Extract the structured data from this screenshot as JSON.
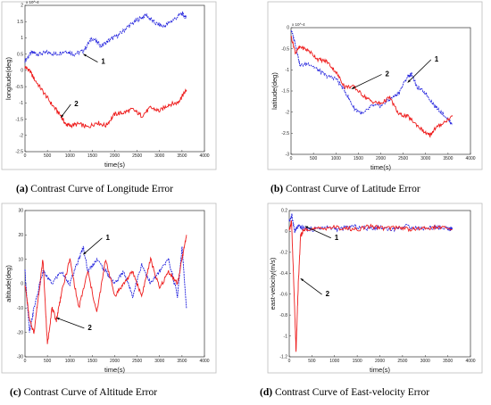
{
  "captions": [
    {
      "letter": "(a)",
      "text": " Contrast Curve of Longitude Error"
    },
    {
      "letter": "(b)",
      "text": " Contrast Curve of Latitude Error"
    },
    {
      "letter": "(c)",
      "text": " Contrast Curve of Altitude Error"
    },
    {
      "letter": "(d)",
      "text": " Contrast Curve of East-velocity Error"
    }
  ],
  "colors": {
    "series1": "#2020dd",
    "series2": "#ee1c1c"
  },
  "chart_data": [
    {
      "type": "line",
      "xlabel": "time(s)",
      "ylabel": "longitude(deg)",
      "y_multiplier": "x 10^-4",
      "xlim": [
        0,
        4000
      ],
      "ylim": [
        -2.5,
        2
      ],
      "xticks": [
        "0",
        "500",
        "1000",
        "1500",
        "2000",
        "2500",
        "3000",
        "3500",
        "4000"
      ],
      "yticks": [
        "-2.5",
        "-2",
        "-1.5",
        "-1",
        "-0.5",
        "0",
        "0.5",
        "1",
        "1.5",
        "2"
      ],
      "series": [
        {
          "label": "1",
          "x": [
            0,
            150,
            300,
            500,
            700,
            900,
            1100,
            1300,
            1500,
            1700,
            1900,
            2100,
            2300,
            2500,
            2700,
            2900,
            3100,
            3300,
            3500,
            3600
          ],
          "y": [
            0.3,
            0.55,
            0.5,
            0.55,
            0.5,
            0.6,
            0.5,
            0.6,
            1.0,
            0.75,
            0.95,
            1.1,
            1.35,
            1.55,
            1.7,
            1.45,
            1.35,
            1.55,
            1.75,
            1.6
          ]
        },
        {
          "label": "2",
          "x": [
            0,
            100,
            200,
            400,
            600,
            800,
            900,
            1000,
            1200,
            1400,
            1600,
            1800,
            2000,
            2200,
            2400,
            2600,
            2800,
            3000,
            3200,
            3400,
            3500,
            3600
          ],
          "y": [
            0.1,
            0.0,
            -0.25,
            -0.65,
            -1.05,
            -1.4,
            -1.65,
            -1.7,
            -1.65,
            -1.75,
            -1.6,
            -1.7,
            -1.35,
            -1.3,
            -1.2,
            -1.4,
            -1.15,
            -1.25,
            -1.05,
            -1.0,
            -0.8,
            -0.6
          ]
        }
      ],
      "annotations": [
        {
          "text": "1",
          "target": [
            1300,
            0.5
          ],
          "label_at": [
            1700,
            0.2
          ]
        },
        {
          "text": "2",
          "target": [
            800,
            -1.45
          ],
          "label_at": [
            1100,
            -1.1
          ]
        }
      ]
    },
    {
      "type": "line",
      "xlabel": "time(s)",
      "ylabel": "latitude(deg)",
      "y_multiplier": "x 10^-4",
      "xlim": [
        0,
        4000
      ],
      "ylim": [
        -3,
        0
      ],
      "xticks": [
        "0",
        "500",
        "1000",
        "1500",
        "2000",
        "2500",
        "3000",
        "3500",
        "4000"
      ],
      "yticks": [
        "-3",
        "-2.5",
        "-2",
        "-1.5",
        "-1",
        "-0.5",
        "0"
      ],
      "series": [
        {
          "label": "1",
          "x": [
            0,
            100,
            200,
            400,
            600,
            800,
            1000,
            1200,
            1400,
            1600,
            1800,
            2000,
            2200,
            2400,
            2600,
            2700,
            2800,
            3000,
            3200,
            3400,
            3600
          ],
          "y": [
            -0.05,
            -0.4,
            -0.9,
            -0.85,
            -1.0,
            -1.15,
            -1.2,
            -1.5,
            -1.9,
            -2.05,
            -1.85,
            -1.85,
            -1.7,
            -1.55,
            -1.15,
            -1.1,
            -1.4,
            -1.55,
            -1.85,
            -2.05,
            -2.3
          ]
        },
        {
          "label": "2",
          "x": [
            0,
            100,
            200,
            400,
            600,
            800,
            1000,
            1200,
            1400,
            1600,
            1800,
            2000,
            2200,
            2400,
            2600,
            2800,
            3000,
            3100,
            3200,
            3400,
            3600
          ],
          "y": [
            -0.2,
            -0.6,
            -0.45,
            -0.55,
            -0.75,
            -0.8,
            -1.05,
            -1.4,
            -1.4,
            -1.6,
            -1.75,
            -1.8,
            -1.65,
            -2.05,
            -2.1,
            -2.3,
            -2.5,
            -2.55,
            -2.4,
            -2.25,
            -2.1
          ]
        }
      ],
      "annotations": [
        {
          "text": "1",
          "target": [
            2600,
            -1.3
          ],
          "label_at": [
            3200,
            -0.8
          ]
        },
        {
          "text": "2",
          "target": [
            1350,
            -1.45
          ],
          "label_at": [
            2100,
            -1.15
          ]
        }
      ]
    },
    {
      "type": "line",
      "xlabel": "time(s)",
      "ylabel": "altitude(deg)",
      "xlim": [
        0,
        4000
      ],
      "ylim": [
        -30,
        30
      ],
      "xticks": [
        "0",
        "500",
        "1000",
        "1500",
        "2000",
        "2500",
        "3000",
        "3500",
        "4000"
      ],
      "yticks": [
        "-30",
        "-20",
        "-10",
        "0",
        "10",
        "20",
        "30"
      ],
      "series": [
        {
          "label": "1",
          "x": [
            0,
            100,
            200,
            400,
            600,
            800,
            1000,
            1200,
            1300,
            1400,
            1600,
            1800,
            2000,
            2200,
            2400,
            2600,
            2800,
            3000,
            3200,
            3400,
            3500,
            3600
          ],
          "y": [
            5,
            -20,
            -10,
            5,
            0,
            5,
            0,
            10,
            15,
            5,
            10,
            5,
            0,
            5,
            -5,
            8,
            0,
            5,
            10,
            -5,
            15,
            -10
          ]
        },
        {
          "label": "2",
          "x": [
            0,
            100,
            200,
            300,
            400,
            500,
            600,
            700,
            800,
            1000,
            1200,
            1400,
            1600,
            1800,
            2000,
            2200,
            2400,
            2600,
            2800,
            3000,
            3200,
            3400,
            3500,
            3600
          ],
          "y": [
            0,
            -15,
            -20,
            -5,
            10,
            -25,
            -10,
            -15,
            -5,
            10,
            -10,
            5,
            -12,
            10,
            -5,
            0,
            5,
            -5,
            10,
            -2,
            5,
            0,
            10,
            20
          ]
        }
      ],
      "annotations": [
        {
          "text": "1",
          "target": [
            1300,
            12
          ],
          "label_at": [
            1800,
            18
          ]
        },
        {
          "text": "2",
          "target": [
            700,
            -14
          ],
          "label_at": [
            1400,
            -19
          ]
        }
      ]
    },
    {
      "type": "line",
      "xlabel": "time(s)",
      "ylabel": "east-velocity(m/s)",
      "xlim": [
        0,
        4000
      ],
      "ylim": [
        -1.2,
        0.2
      ],
      "xticks": [
        "0",
        "500",
        "1000",
        "1500",
        "2000",
        "2500",
        "3000",
        "3500",
        "4000"
      ],
      "yticks": [
        "-1.2",
        "-1",
        "-0.8",
        "-0.6",
        "-0.4",
        "-0.2",
        "0",
        "0.2"
      ],
      "series": [
        {
          "label": "1",
          "x": [
            0,
            60,
            120,
            200,
            300,
            500,
            800,
            1100,
            1400,
            1700,
            2000,
            2300,
            2600,
            2900,
            3200,
            3500,
            3600
          ],
          "y": [
            0.1,
            0.15,
            0.0,
            0.05,
            0.03,
            0.02,
            0.04,
            0.02,
            0.05,
            0.03,
            0.04,
            0.02,
            0.05,
            0.03,
            0.04,
            0.03,
            0.02
          ]
        },
        {
          "label": "2",
          "x": [
            0,
            50,
            100,
            150,
            200,
            250,
            300,
            400,
            600,
            900,
            1200,
            1500,
            1800,
            2100,
            2400,
            2700,
            3000,
            3300,
            3600
          ],
          "y": [
            0.0,
            0.1,
            -0.5,
            -1.15,
            -0.5,
            -0.05,
            0.0,
            0.03,
            0.02,
            0.04,
            0.03,
            0.02,
            0.05,
            0.03,
            0.04,
            0.02,
            0.03,
            0.04,
            0.02
          ]
        }
      ],
      "annotations": [
        {
          "text": "1",
          "target": [
            350,
            0.05
          ],
          "label_at": [
            1000,
            -0.08
          ]
        },
        {
          "text": "2",
          "target": [
            250,
            -0.45
          ],
          "label_at": [
            800,
            -0.62
          ]
        }
      ]
    }
  ]
}
